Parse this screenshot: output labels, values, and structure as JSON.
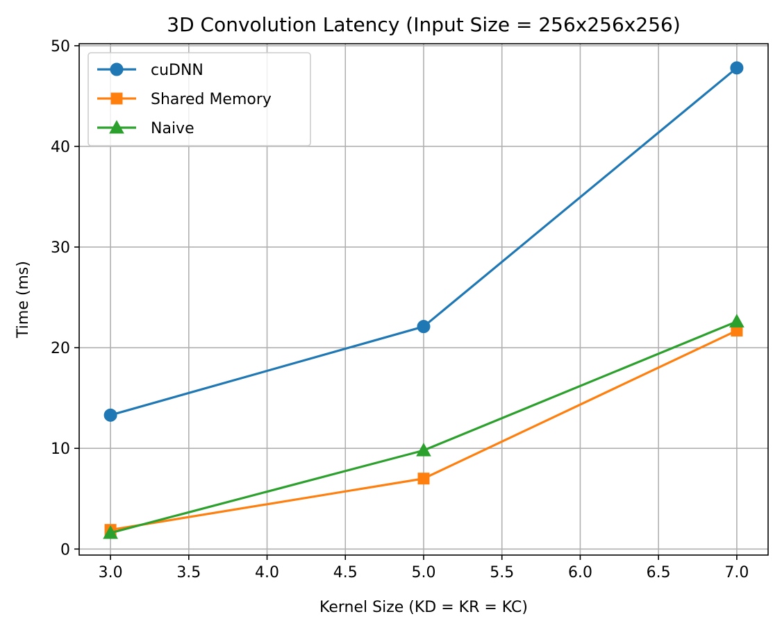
{
  "chart_data": {
    "type": "line",
    "title": "3D Convolution Latency (Input Size = 256x256x256)",
    "xlabel": "Kernel Size (KD = KR = KC)",
    "ylabel": "Time (ms)",
    "x": [
      3.0,
      5.0,
      7.0
    ],
    "xlim": [
      2.8,
      7.2
    ],
    "ylim": [
      -0.6,
      50.2
    ],
    "xticks": [
      3.0,
      3.5,
      4.0,
      4.5,
      5.0,
      5.5,
      6.0,
      6.5,
      7.0
    ],
    "xtick_labels": [
      "3.0",
      "3.5",
      "4.0",
      "4.5",
      "5.0",
      "5.5",
      "6.0",
      "6.5",
      "7.0"
    ],
    "yticks": [
      0,
      10,
      20,
      30,
      40,
      50
    ],
    "ytick_labels": [
      "0",
      "10",
      "20",
      "30",
      "40",
      "50"
    ],
    "grid": true,
    "legend_position": "top-left",
    "series": [
      {
        "name": "cuDNN",
        "values": [
          13.3,
          22.1,
          47.8
        ],
        "color": "#1f77b4",
        "marker": "circle"
      },
      {
        "name": "Shared Memory",
        "values": [
          1.9,
          7.0,
          21.7
        ],
        "color": "#ff7f0e",
        "marker": "square"
      },
      {
        "name": "Naive",
        "values": [
          1.6,
          9.8,
          22.6
        ],
        "color": "#2ca02c",
        "marker": "triangle"
      }
    ]
  }
}
